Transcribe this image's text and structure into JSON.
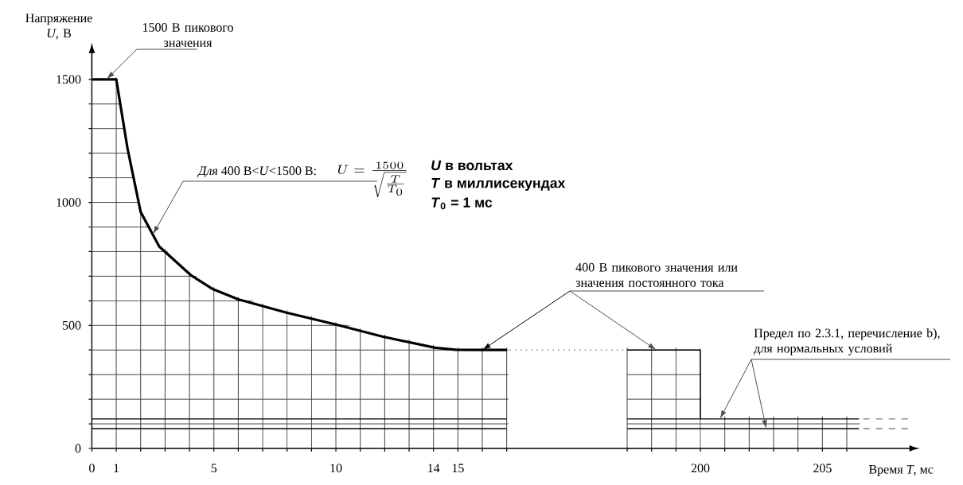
{
  "chart_data": [
    {
      "type": "line",
      "ylabel": "Напряжение *U*, В",
      "xlim": [
        0,
        22
      ],
      "ylim": [
        0,
        1650
      ],
      "xticks": [
        0,
        1,
        {
          "value": 2,
          "label": null
        },
        {
          "value": 3,
          "label": null
        },
        {
          "value": 4,
          "label": null
        },
        5,
        {
          "value": 6,
          "label": null
        },
        {
          "value": 7,
          "label": null
        },
        {
          "value": 8,
          "label": null
        },
        {
          "value": 9,
          "label": null
        },
        10,
        {
          "value": 11,
          "label": null
        },
        {
          "value": 12,
          "label": null
        },
        {
          "value": 13,
          "label": null
        },
        14,
        15,
        {
          "value": 16,
          "label": null
        },
        {
          "value": 17,
          "label": null
        }
      ],
      "yticks": [
        0,
        {
          "value": 100,
          "label": null
        },
        {
          "value": 200,
          "label": null
        },
        {
          "value": 300,
          "label": null
        },
        {
          "value": 400,
          "label": null
        },
        500,
        {
          "value": 600,
          "label": null
        },
        {
          "value": 700,
          "label": null
        },
        {
          "value": 800,
          "label": null
        },
        {
          "value": 900,
          "label": null
        },
        1000,
        {
          "value": 1100,
          "label": null
        },
        {
          "value": 1200,
          "label": null
        },
        {
          "value": 1300,
          "label": null
        },
        {
          "value": 1400,
          "label": null
        },
        1500
      ],
      "grid": true,
      "series": [
        {
          "color": "#000000",
          "x": [
            0,
            1,
            1.46,
            2.0,
            2.76,
            4.07,
            4.93,
            6.0,
            7.98,
            9.98,
            11.9,
            14.07,
            14.9,
            16.0,
            17
          ],
          "values": [
            1500,
            1500,
            1220,
            961,
            821,
            703,
            649,
            606,
            552,
            504,
            455,
            409,
            401,
            400,
            400
          ]
        },
        {
          "color": "#000000",
          "x": [
            0,
            17
          ],
          "values": [
            120,
            120
          ]
        },
        {
          "color": "#000000",
          "x": [
            0,
            17
          ],
          "values": [
            80,
            80
          ]
        },
        {
          "color": "#808080",
          "line_style": "dotted",
          "x": [
            17,
            22
          ],
          "values": [
            400,
            400
          ]
        }
      ],
      "annotations": [
        {
          "text": "1500 В пикового значения",
          "x": 0.6,
          "y": 1500
        },
        {
          "text": "*Для* 400 В<*U*<1500 В:",
          "x": 2.5,
          "y": 870
        },
        "U=\\frac{1500}{\\sqrt{\\frac{T}{T_0}}}",
        "*U* в вольтах",
        "*T* в миллисекундах",
        "*T*$_{0}$ = 1 мс"
      ]
    },
    {
      "type": "line",
      "xlabel": "Время *T*, мс",
      "xlim": [
        197,
        209
      ],
      "ylim": [
        0,
        1650
      ],
      "xticks": [
        {
          "value": 197,
          "label": null
        },
        {
          "value": 198,
          "label": null
        },
        {
          "value": 199,
          "label": null
        },
        200,
        {
          "value": 201,
          "label": null
        },
        {
          "value": 202,
          "label": null
        },
        {
          "value": 203,
          "label": null
        },
        {
          "value": 204,
          "label": null
        },
        205,
        {
          "value": 206,
          "label": null
        }
      ],
      "yticks": [
        {
          "value": 0,
          "label": null
        },
        {
          "value": 100,
          "label": null
        },
        {
          "value": 200,
          "label": null
        },
        {
          "value": 300,
          "label": null
        },
        {
          "value": 400,
          "label": null
        }
      ],
      "tick_labels": "x",
      "grid": true,
      "series": [
        {
          "color": "#000000",
          "x": [
            197,
            200,
            200
          ],
          "values": [
            400,
            400,
            120
          ]
        },
        {
          "color": "#000000",
          "x": [
            197,
            206.5
          ],
          "values": [
            120,
            120
          ]
        },
        {
          "color": "#000000",
          "x": [
            197,
            206.5
          ],
          "values": [
            80,
            80
          ]
        },
        {
          "color": "#808080",
          "line_style": "dashed",
          "x": [
            206.5,
            208.5
          ],
          "values": [
            120,
            120
          ]
        },
        {
          "color": "#808080",
          "line_style": "dashed",
          "x": [
            206.5,
            208.5
          ],
          "values": [
            80,
            80
          ]
        }
      ],
      "annotations": [
        {
          "text": "400 В пикового значения или значения постоянного тока",
          "x": 198.2,
          "y": 400
        },
        {
          "text": "Предел по 2.3.1, перечисление b), для нормальных условий",
          "x": 200.8,
          "y": 120
        }
      ]
    }
  ]
}
